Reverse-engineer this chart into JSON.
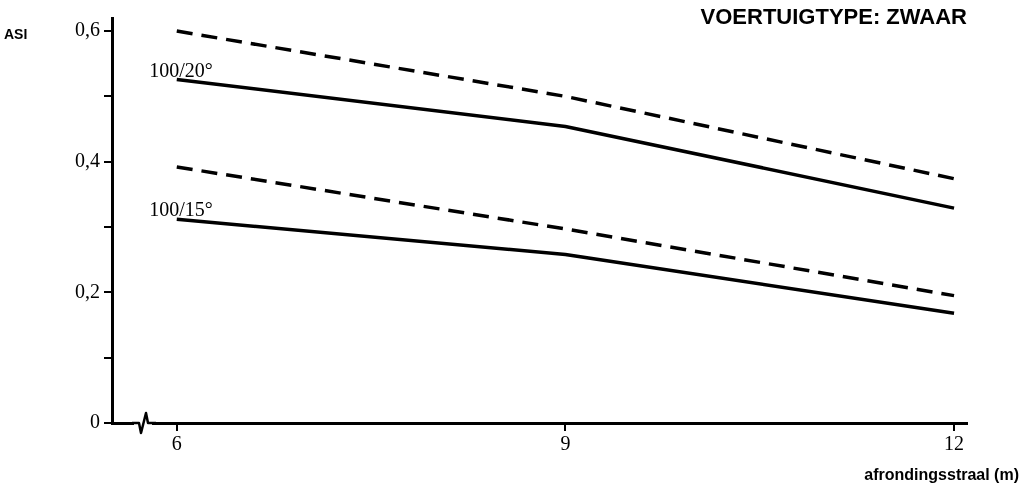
{
  "chart_data": {
    "type": "line",
    "title": "VOERTUIGTYPE: ZWAAR",
    "xlabel": "afrondingsstraal (m)",
    "ylabel": "ASI",
    "x": [
      6,
      9,
      12
    ],
    "series": [
      {
        "color": "#000000",
        "line_style": "dashed",
        "values": [
          0.6,
          0.5,
          0.374
        ]
      },
      {
        "color": "#000000",
        "line_style": "solid",
        "values": [
          0.526,
          0.454,
          0.329
        ]
      },
      {
        "color": "#000000",
        "line_style": "dashed",
        "values": [
          0.392,
          0.297,
          0.195
        ]
      },
      {
        "color": "#000000",
        "line_style": "solid",
        "values": [
          0.312,
          0.258,
          0.168
        ]
      }
    ],
    "xlim": [
      5.5,
      12.1
    ],
    "xticks": [
      6,
      9,
      12
    ],
    "ylim": [
      0,
      0.62
    ],
    "yticks": [
      {
        "value": 0,
        "label": "0"
      },
      {
        "value": 0.1,
        "label": null
      },
      {
        "value": 0.2,
        "label": "0,2"
      },
      {
        "value": 0.3,
        "label": null
      },
      {
        "value": 0.4,
        "label": "0,4"
      },
      {
        "value": 0.5,
        "label": null
      },
      {
        "value": 0.6,
        "label": "0,6"
      }
    ],
    "annotations": [
      {
        "text": "100/20°",
        "x": 6,
        "y": 0.526
      },
      {
        "text": "100/15°",
        "x": 6,
        "y": 0.312
      }
    ],
    "grid": false,
    "legend": false,
    "marker": "none"
  }
}
